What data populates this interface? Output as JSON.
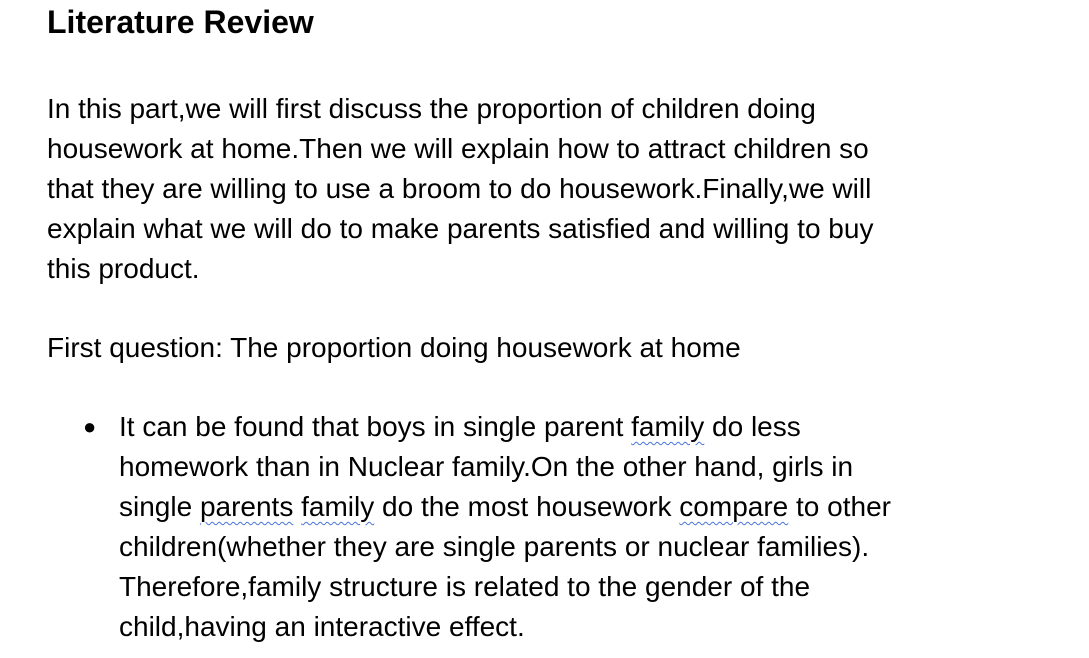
{
  "heading": "Literature Review",
  "intro_lines": [
    "In this part,we will first discuss the proportion of children doing",
    "housework at home.Then we will explain how to attract children so",
    "that they are willing to use a broom to do housework.Finally,we will",
    "explain what we will do to make parents satisfied and willing to buy",
    "this product."
  ],
  "question": "First question: The proportion doing housework at home",
  "bullet": {
    "marker": "●",
    "l1a": "It can be found that boys in single parent ",
    "l1b": "family",
    "l1c": " do less",
    "l2": "homework than in Nuclear family.On the other hand, girls in",
    "l3a": "single ",
    "l3b": "parents",
    "l3c": " ",
    "l3d": "family",
    "l3e": " do the most housework ",
    "l3f": "compare",
    "l3g": " to other",
    "l4": "children(whether they are single parents or nuclear families).",
    "l5": "Therefore,family structure is related to the gender of the",
    "l6": "child,having an interactive effect."
  },
  "colors": {
    "text": "#000000",
    "spellcheck_underline": "#4a73d8",
    "background": "#ffffff"
  }
}
